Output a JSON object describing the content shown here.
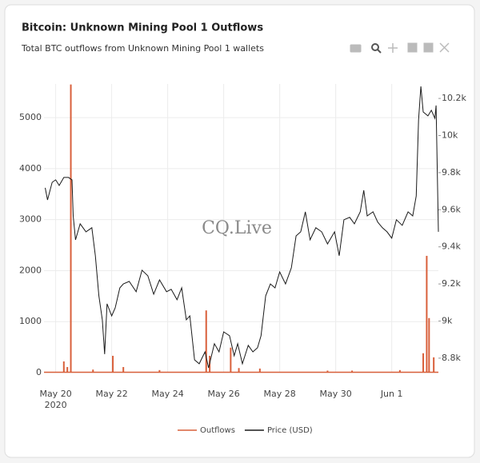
{
  "chart_data": {
    "type": "line",
    "title": "Bitcoin: Unknown Mining Pool 1 Outflows",
    "subtitle": "Total BTC outflows from Unknown Mining Pool 1 wallets",
    "watermark": "CQ.Live",
    "legend": "bottom",
    "grid": true,
    "xlim": [
      "2020-05-19T14:00",
      "2020-06-02T16:00"
    ],
    "xticks": [
      {
        "value": "2020-05-20T00:00",
        "label": "May 20\n2020"
      },
      {
        "value": "2020-05-22T00:00",
        "label": "May 22"
      },
      {
        "value": "2020-05-24T00:00",
        "label": "May 24"
      },
      {
        "value": "2020-05-26T00:00",
        "label": "May 26"
      },
      {
        "value": "2020-05-28T00:00",
        "label": "May 28"
      },
      {
        "value": "2020-05-30T00:00",
        "label": "May 30"
      },
      {
        "value": "2020-06-01T00:00",
        "label": "Jun 1"
      }
    ],
    "ylim": [
      0,
      5660
    ],
    "yticks": [
      0,
      1000,
      2000,
      3000,
      4000,
      5000
    ],
    "y2lim": [
      8722,
      10278
    ],
    "y2ticks": [
      {
        "value": 8800,
        "label": "8.8k"
      },
      {
        "value": 9000,
        "label": "9k"
      },
      {
        "value": 9200,
        "label": "9.2k"
      },
      {
        "value": 9400,
        "label": "9.4k"
      },
      {
        "value": 9600,
        "label": "9.6k"
      },
      {
        "value": 9800,
        "label": "9.8k"
      },
      {
        "value": 10000,
        "label": "10k"
      },
      {
        "value": 10200,
        "label": "10.2k"
      }
    ],
    "series": [
      {
        "name": "Outflows",
        "type": "bar",
        "color": "#d9603b",
        "x": [
          "2020-05-20T07:00",
          "2020-05-20T10:00",
          "2020-05-20T13:00",
          "2020-05-21T08:00",
          "2020-05-22T01:00",
          "2020-05-22T10:00",
          "2020-05-23T17:00",
          "2020-05-25T09:00",
          "2020-05-25T12:00",
          "2020-05-26T06:00",
          "2020-05-26T13:00",
          "2020-05-27T07:00",
          "2020-05-29T17:00",
          "2020-05-30T14:00",
          "2020-06-01T07:00",
          "2020-06-02T03:00",
          "2020-06-02T06:00",
          "2020-06-02T08:00",
          "2020-06-02T12:00"
        ],
        "values": [
          220,
          110,
          5650,
          60,
          330,
          110,
          50,
          1220,
          330,
          490,
          90,
          80,
          40,
          40,
          50,
          380,
          2290,
          1070,
          300
        ]
      },
      {
        "name": "Price (USD)",
        "type": "line",
        "axis": "y2",
        "color": "#1a1a1a",
        "x": [
          "2020-05-19T15:00",
          "2020-05-19T17:00",
          "2020-05-19T21:00",
          "2020-05-20T00:00",
          "2020-05-20T03:00",
          "2020-05-20T07:00",
          "2020-05-20T11:00",
          "2020-05-20T14:00",
          "2020-05-20T15:00",
          "2020-05-20T17:00",
          "2020-05-20T21:00",
          "2020-05-21T02:00",
          "2020-05-21T07:00",
          "2020-05-21T10:00",
          "2020-05-21T13:00",
          "2020-05-21T16:00",
          "2020-05-21T18:00",
          "2020-05-21T20:00",
          "2020-05-22T00:00",
          "2020-05-22T03:00",
          "2020-05-22T07:00",
          "2020-05-22T10:00",
          "2020-05-22T15:00",
          "2020-05-22T21:00",
          "2020-05-23T02:00",
          "2020-05-23T07:00",
          "2020-05-23T12:00",
          "2020-05-23T17:00",
          "2020-05-23T23:00",
          "2020-05-24T03:00",
          "2020-05-24T08:00",
          "2020-05-24T12:00",
          "2020-05-24T16:00",
          "2020-05-24T19:00",
          "2020-05-24T23:00",
          "2020-05-25T03:00",
          "2020-05-25T08:00",
          "2020-05-25T11:00",
          "2020-05-25T16:00",
          "2020-05-25T20:00",
          "2020-05-26T00:00",
          "2020-05-26T05:00",
          "2020-05-26T09:00",
          "2020-05-26T12:00",
          "2020-05-26T16:00",
          "2020-05-26T21:00",
          "2020-05-27T01:00",
          "2020-05-27T05:00",
          "2020-05-27T08:00",
          "2020-05-27T12:00",
          "2020-05-27T16:00",
          "2020-05-27T20:00",
          "2020-05-28T00:00",
          "2020-05-28T05:00",
          "2020-05-28T10:00",
          "2020-05-28T14:00",
          "2020-05-28T18:00",
          "2020-05-28T22:00",
          "2020-05-29T02:00",
          "2020-05-29T07:00",
          "2020-05-29T12:00",
          "2020-05-29T17:00",
          "2020-05-29T23:00",
          "2020-05-30T03:00",
          "2020-05-30T07:00",
          "2020-05-30T12:00",
          "2020-05-30T16:00",
          "2020-05-30T21:00",
          "2020-05-31T00:00",
          "2020-05-31T03:00",
          "2020-05-31T08:00",
          "2020-05-31T12:00",
          "2020-05-31T16:00",
          "2020-05-31T20:00",
          "2020-06-01T00:00",
          "2020-06-01T04:00",
          "2020-06-01T09:00",
          "2020-06-01T14:00",
          "2020-06-01T18:00",
          "2020-06-01T21:00",
          "2020-06-01T23:00",
          "2020-06-02T01:00",
          "2020-06-02T03:00",
          "2020-06-02T07:00",
          "2020-06-02T10:00",
          "2020-06-02T13:00",
          "2020-06-02T14:00",
          "2020-06-02T16:00"
        ],
        "values": [
          9718,
          9653,
          9748,
          9761,
          9731,
          9774,
          9774,
          9761,
          9567,
          9438,
          9524,
          9481,
          9503,
          9352,
          9136,
          9007,
          8822,
          9093,
          9028,
          9071,
          9179,
          9200,
          9214,
          9158,
          9274,
          9244,
          9145,
          9222,
          9158,
          9171,
          9115,
          9179,
          9007,
          9028,
          8791,
          8770,
          8834,
          8748,
          8878,
          8834,
          8942,
          8921,
          8813,
          8878,
          8770,
          8869,
          8834,
          8856,
          8921,
          9136,
          9200,
          9179,
          9265,
          9200,
          9287,
          9459,
          9481,
          9589,
          9438,
          9503,
          9481,
          9416,
          9481,
          9352,
          9546,
          9559,
          9524,
          9589,
          9705,
          9567,
          9589,
          9533,
          9503,
          9481,
          9447,
          9546,
          9516,
          9589,
          9567,
          9675,
          10084,
          10265,
          10127,
          10106,
          10136,
          10093,
          10162,
          9481
        ]
      }
    ]
  }
}
